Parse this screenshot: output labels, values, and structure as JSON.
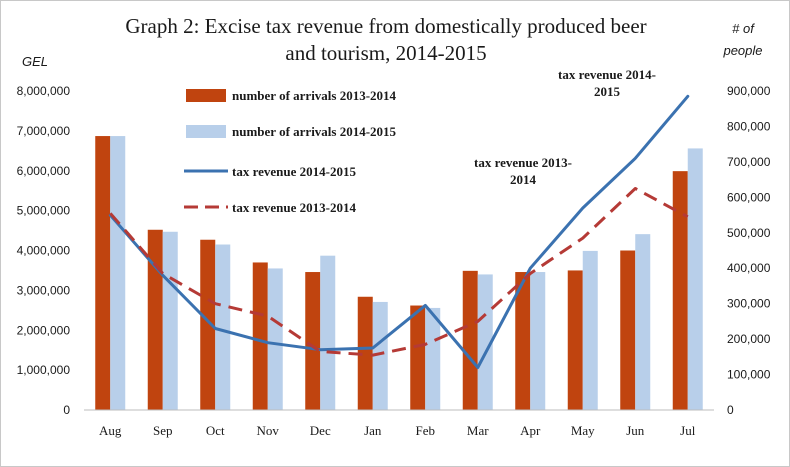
{
  "chart_data": {
    "type": "bar",
    "title_line1": "Graph 2: Excise tax revenue from domestically produced beer",
    "title_line2": "and tourism, 2014-2015",
    "y_left_label": "GEL",
    "y_right_label_line1": "# of",
    "y_right_label_line2": "people",
    "y_left_ticks": [
      "0",
      "1,000,000",
      "2,000,000",
      "3,000,000",
      "4,000,000",
      "5,000,000",
      "6,000,000",
      "7,000,000",
      "8,000,000"
    ],
    "y_right_ticks": [
      "0",
      "100,000",
      "200,000",
      "300,000",
      "400,000",
      "500,000",
      "600,000",
      "700,000",
      "800,000",
      "900,000"
    ],
    "y_left_range": [
      0,
      8000000
    ],
    "y_right_range": [
      0,
      900000
    ],
    "categories": [
      "Aug",
      "Sep",
      "Oct",
      "Nov",
      "Dec",
      "Jan",
      "Feb",
      "Mar",
      "Apr",
      "May",
      "Jun",
      "Jul"
    ],
    "series": [
      {
        "name": "number of arrivals 2013-2014",
        "kind": "bar",
        "axis": "left",
        "color": "#c0440f",
        "values": [
          6870000,
          4520000,
          4270000,
          3700000,
          3460000,
          2840000,
          2620000,
          3490000,
          3460000,
          3500000,
          4000000,
          5990000
        ]
      },
      {
        "name": "number of arrivals 2014-2015",
        "kind": "bar",
        "axis": "left",
        "color": "#b8cfea",
        "values": [
          6870000,
          4470000,
          4150000,
          3550000,
          3870000,
          2710000,
          2560000,
          3400000,
          3460000,
          3990000,
          4410000,
          6560000
        ]
      },
      {
        "name": "tax revenue 2014-2015",
        "kind": "line",
        "axis": "right",
        "color": "#3b72b0",
        "dash": "solid",
        "values": [
          550000,
          380000,
          230000,
          190000,
          170000,
          175000,
          295000,
          120000,
          400000,
          570000,
          710000,
          885000
        ]
      },
      {
        "name": "tax revenue 2013-2014",
        "kind": "line",
        "axis": "right",
        "color": "#b53a36",
        "dash": "dashed",
        "values": [
          555000,
          385000,
          300000,
          265000,
          165000,
          155000,
          185000,
          250000,
          385000,
          485000,
          625000,
          545000
        ]
      }
    ],
    "annotations": [
      {
        "series": "tax revenue 2014-2015",
        "line1": "tax revenue 2014-",
        "line2": "2015"
      },
      {
        "series": "tax revenue 2013-2014",
        "line1": "tax revenue 2013-",
        "line2": "2014"
      }
    ],
    "legend_position": "top-left inside plot"
  }
}
